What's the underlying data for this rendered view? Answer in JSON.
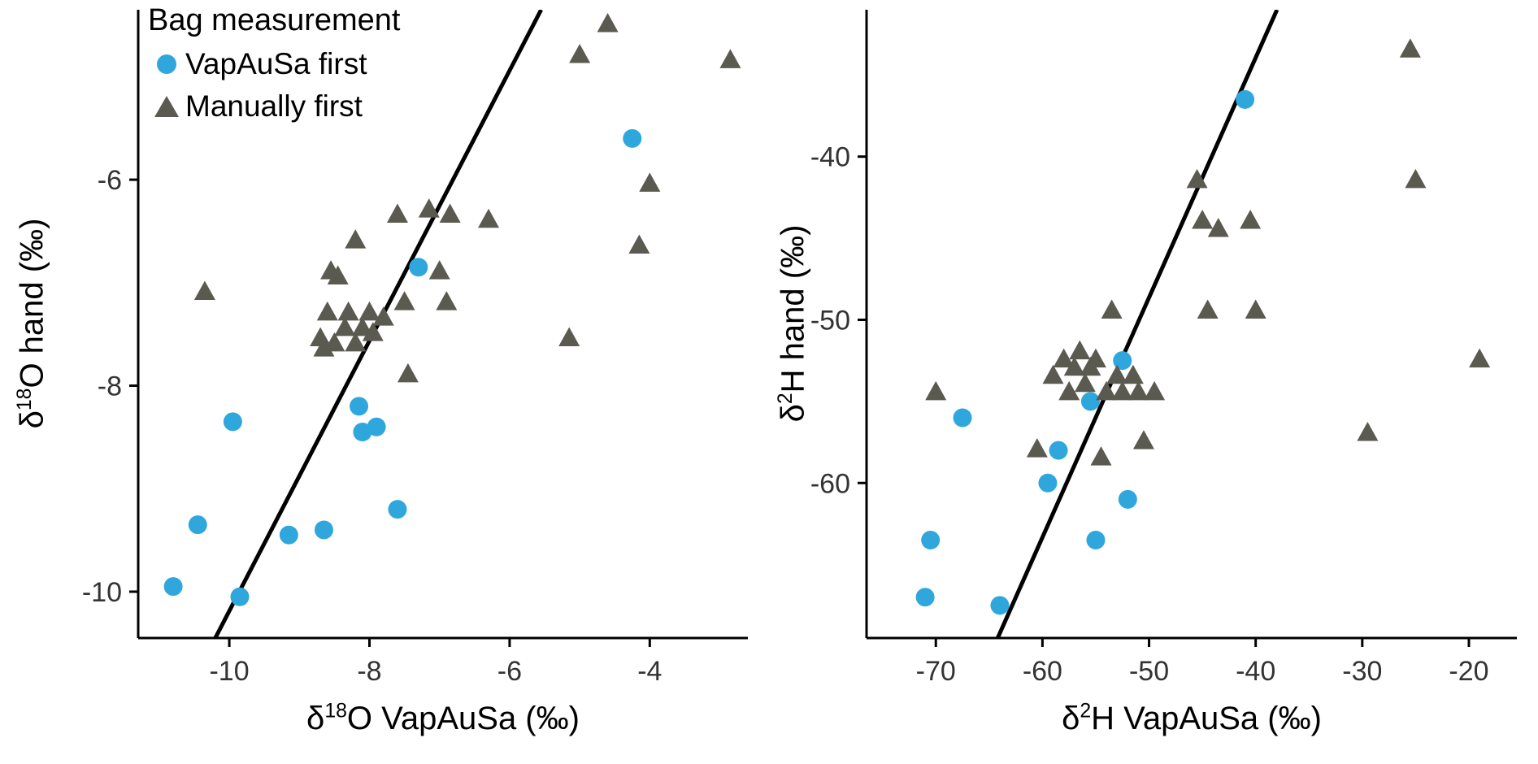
{
  "figure": {
    "background": "#ffffff",
    "accent_blue": "#2fa7dd",
    "marker_gray": "#5a5a50",
    "line_color": "#000000",
    "axis_color": "#000000",
    "tick_label_color": "#333333"
  },
  "legend": {
    "title": "Bag measurement",
    "position": "top-left",
    "items": [
      {
        "label": "VapAuSa first",
        "marker": "circle",
        "color": "#2fa7dd"
      },
      {
        "label": "Manually first",
        "marker": "triangle",
        "color": "#5a5a50"
      }
    ]
  },
  "chart_data": [
    {
      "type": "scatter",
      "panel": "oxygen-18",
      "xlabel_parts": {
        "prefix": "δ",
        "sup": "18",
        "suffix": "O VapAuSa (‰)"
      },
      "ylabel_parts": {
        "prefix": "δ",
        "sup": "18",
        "suffix": "O hand (‰)"
      },
      "xlim": [
        -11.3,
        -2.6
      ],
      "ylim": [
        -10.45,
        -4.35
      ],
      "xticks": [
        -10,
        -8,
        -6,
        -4
      ],
      "yticks": [
        -10,
        -8,
        -6
      ],
      "grid": false,
      "legend_position": "top-left",
      "fit_line": {
        "x1": -10.2,
        "y1": -10.45,
        "x2": -5.55,
        "y2": -4.35
      },
      "series": [
        {
          "name": "VapAuSa first",
          "marker": "circle",
          "points": [
            [
              -10.8,
              -9.95
            ],
            [
              -10.45,
              -9.35
            ],
            [
              -9.95,
              -8.35
            ],
            [
              -9.85,
              -10.05
            ],
            [
              -9.15,
              -9.45
            ],
            [
              -8.65,
              -9.4
            ],
            [
              -8.15,
              -8.2
            ],
            [
              -8.1,
              -8.45
            ],
            [
              -7.9,
              -8.4
            ],
            [
              -7.6,
              -9.2
            ],
            [
              -7.3,
              -6.85
            ],
            [
              -4.25,
              -5.6
            ]
          ]
        },
        {
          "name": "Manually first",
          "marker": "triangle",
          "points": [
            [
              -10.35,
              -7.1
            ],
            [
              -8.7,
              -7.55
            ],
            [
              -8.65,
              -7.65
            ],
            [
              -8.6,
              -7.3
            ],
            [
              -8.55,
              -6.9
            ],
            [
              -8.5,
              -7.6
            ],
            [
              -8.45,
              -6.95
            ],
            [
              -8.35,
              -7.45
            ],
            [
              -8.3,
              -7.3
            ],
            [
              -8.2,
              -7.6
            ],
            [
              -8.2,
              -6.6
            ],
            [
              -8.1,
              -7.45
            ],
            [
              -8.0,
              -7.3
            ],
            [
              -7.95,
              -7.5
            ],
            [
              -7.8,
              -7.35
            ],
            [
              -7.6,
              -6.35
            ],
            [
              -7.5,
              -7.2
            ],
            [
              -7.45,
              -7.9
            ],
            [
              -7.15,
              -6.3
            ],
            [
              -7.0,
              -6.9
            ],
            [
              -6.9,
              -7.2
            ],
            [
              -6.85,
              -6.35
            ],
            [
              -6.3,
              -6.4
            ],
            [
              -5.15,
              -7.55
            ],
            [
              -5.0,
              -4.8
            ],
            [
              -4.6,
              -4.5
            ],
            [
              -4.15,
              -6.65
            ],
            [
              -4.0,
              -6.05
            ],
            [
              -2.85,
              -4.85
            ]
          ]
        }
      ]
    },
    {
      "type": "scatter",
      "panel": "hydrogen-2",
      "xlabel_parts": {
        "prefix": "δ",
        "sup": "2",
        "suffix": "H VapAuSa (‰)"
      },
      "ylabel_parts": {
        "prefix": "δ",
        "sup": "2",
        "suffix": "H hand (‰)"
      },
      "xlim": [
        -76.5,
        -15.5
      ],
      "ylim": [
        -69.5,
        -31.0
      ],
      "xticks": [
        -70,
        -60,
        -50,
        -40,
        -30,
        -20
      ],
      "yticks": [
        -60,
        -50,
        -40
      ],
      "grid": false,
      "fit_line": {
        "x1": -64.2,
        "y1": -69.5,
        "x2": -38.0,
        "y2": -31.0
      },
      "series": [
        {
          "name": "VapAuSa first",
          "marker": "circle",
          "points": [
            [
              -71,
              -67
            ],
            [
              -70.5,
              -63.5
            ],
            [
              -67.5,
              -56
            ],
            [
              -64,
              -67.5
            ],
            [
              -59.5,
              -60
            ],
            [
              -58.5,
              -58
            ],
            [
              -55.5,
              -55
            ],
            [
              -55,
              -63.5
            ],
            [
              -52.5,
              -52.5
            ],
            [
              -52,
              -61
            ],
            [
              -41,
              -36.5
            ]
          ]
        },
        {
          "name": "Manually first",
          "marker": "triangle",
          "points": [
            [
              -70,
              -54.5
            ],
            [
              -60.5,
              -58
            ],
            [
              -59,
              -53.5
            ],
            [
              -58,
              -52.5
            ],
            [
              -57.5,
              -54.5
            ],
            [
              -57,
              -53
            ],
            [
              -56.5,
              -52
            ],
            [
              -56,
              -54
            ],
            [
              -55.5,
              -53
            ],
            [
              -55,
              -52.5
            ],
            [
              -54.5,
              -58.5
            ],
            [
              -54,
              -54.5
            ],
            [
              -53.5,
              -49.5
            ],
            [
              -53,
              -53.5
            ],
            [
              -52.5,
              -54.5
            ],
            [
              -51.5,
              -53.5
            ],
            [
              -51,
              -54.5
            ],
            [
              -50.5,
              -57.5
            ],
            [
              -49.5,
              -54.5
            ],
            [
              -45.5,
              -41.5
            ],
            [
              -45,
              -44
            ],
            [
              -44.5,
              -49.5
            ],
            [
              -43.5,
              -44.5
            ],
            [
              -40.5,
              -44
            ],
            [
              -40,
              -49.5
            ],
            [
              -29.5,
              -57
            ],
            [
              -25.5,
              -33.5
            ],
            [
              -25,
              -41.5
            ],
            [
              -19,
              -52.5
            ]
          ]
        }
      ]
    }
  ]
}
